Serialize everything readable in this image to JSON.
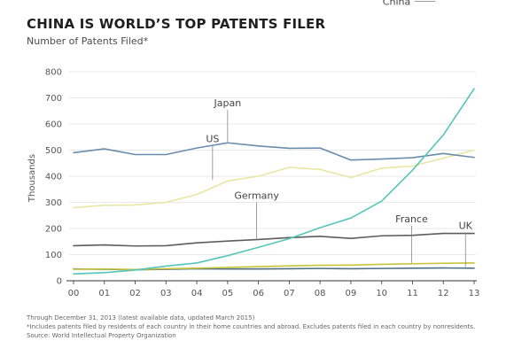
{
  "header": {
    "title": "CHINA IS WORLD’S TOP PATENTS FILER",
    "subtitle": "Number of Patents Filed*"
  },
  "chart_data": {
    "type": "line",
    "title": "CHINA IS WORLD’S TOP PATENTS FILER",
    "subtitle": "Number of Patents Filed*",
    "xlabel": "",
    "ylabel": "Thousands",
    "x": [
      "00",
      "01",
      "02",
      "03",
      "04",
      "05",
      "06",
      "07",
      "08",
      "09",
      "10",
      "11",
      "12",
      "13"
    ],
    "ylim": [
      0,
      800
    ],
    "yticks": [
      0,
      100,
      200,
      300,
      400,
      500,
      600,
      700,
      800
    ],
    "grid": true,
    "legend": "inline labels",
    "series": [
      {
        "name": "Japan",
        "color": "#6b8cac",
        "values": [
          490,
          505,
          483,
          483,
          508,
          528,
          516,
          507,
          508,
          462,
          466,
          471,
          487,
          472
        ]
      },
      {
        "name": "China",
        "color": "#56c5b9",
        "values": [
          26,
          31,
          41,
          56,
          68,
          96,
          128,
          161,
          203,
          240,
          305,
          423,
          558,
          735
        ]
      },
      {
        "name": "US",
        "color": "#e8e7a3",
        "values": [
          280,
          289,
          290,
          300,
          330,
          382,
          400,
          434,
          426,
          395,
          431,
          439,
          469,
          500
        ]
      },
      {
        "name": "Germany",
        "color": "#5d5d5d",
        "values": [
          134,
          137,
          133,
          134,
          145,
          152,
          158,
          165,
          170,
          162,
          172,
          174,
          181,
          181
        ]
      },
      {
        "name": "France",
        "color": "#c7c43a",
        "values": [
          44,
          45,
          43,
          46,
          48,
          51,
          54,
          57,
          59,
          60,
          63,
          65,
          67,
          68
        ]
      },
      {
        "name": "UK",
        "color": "#4f6f86",
        "values": [
          45,
          44,
          42,
          44,
          46,
          45,
          45,
          46,
          47,
          46,
          47,
          48,
          49,
          48
        ]
      }
    ],
    "annotations": [
      {
        "text": "Japan",
        "series": "Japan",
        "at": "05"
      },
      {
        "text": "China",
        "series": "China",
        "at": "12"
      },
      {
        "text": "US",
        "series": "US",
        "at": "05"
      },
      {
        "text": "Germany",
        "series": "Germany",
        "at": "06"
      },
      {
        "text": "France",
        "series": "France",
        "at": "11"
      },
      {
        "text": "UK",
        "series": "UK",
        "at": "12"
      }
    ]
  },
  "footer": {
    "line1": "Through December 31, 2013 (latest available data, updated March 2015)",
    "line2": "*Includes patents filed by residents of each country in their home countries and abroad. Excludes patents filed in each country by nonresidents.",
    "line3": "Source: World Intellectual Property Organization"
  }
}
